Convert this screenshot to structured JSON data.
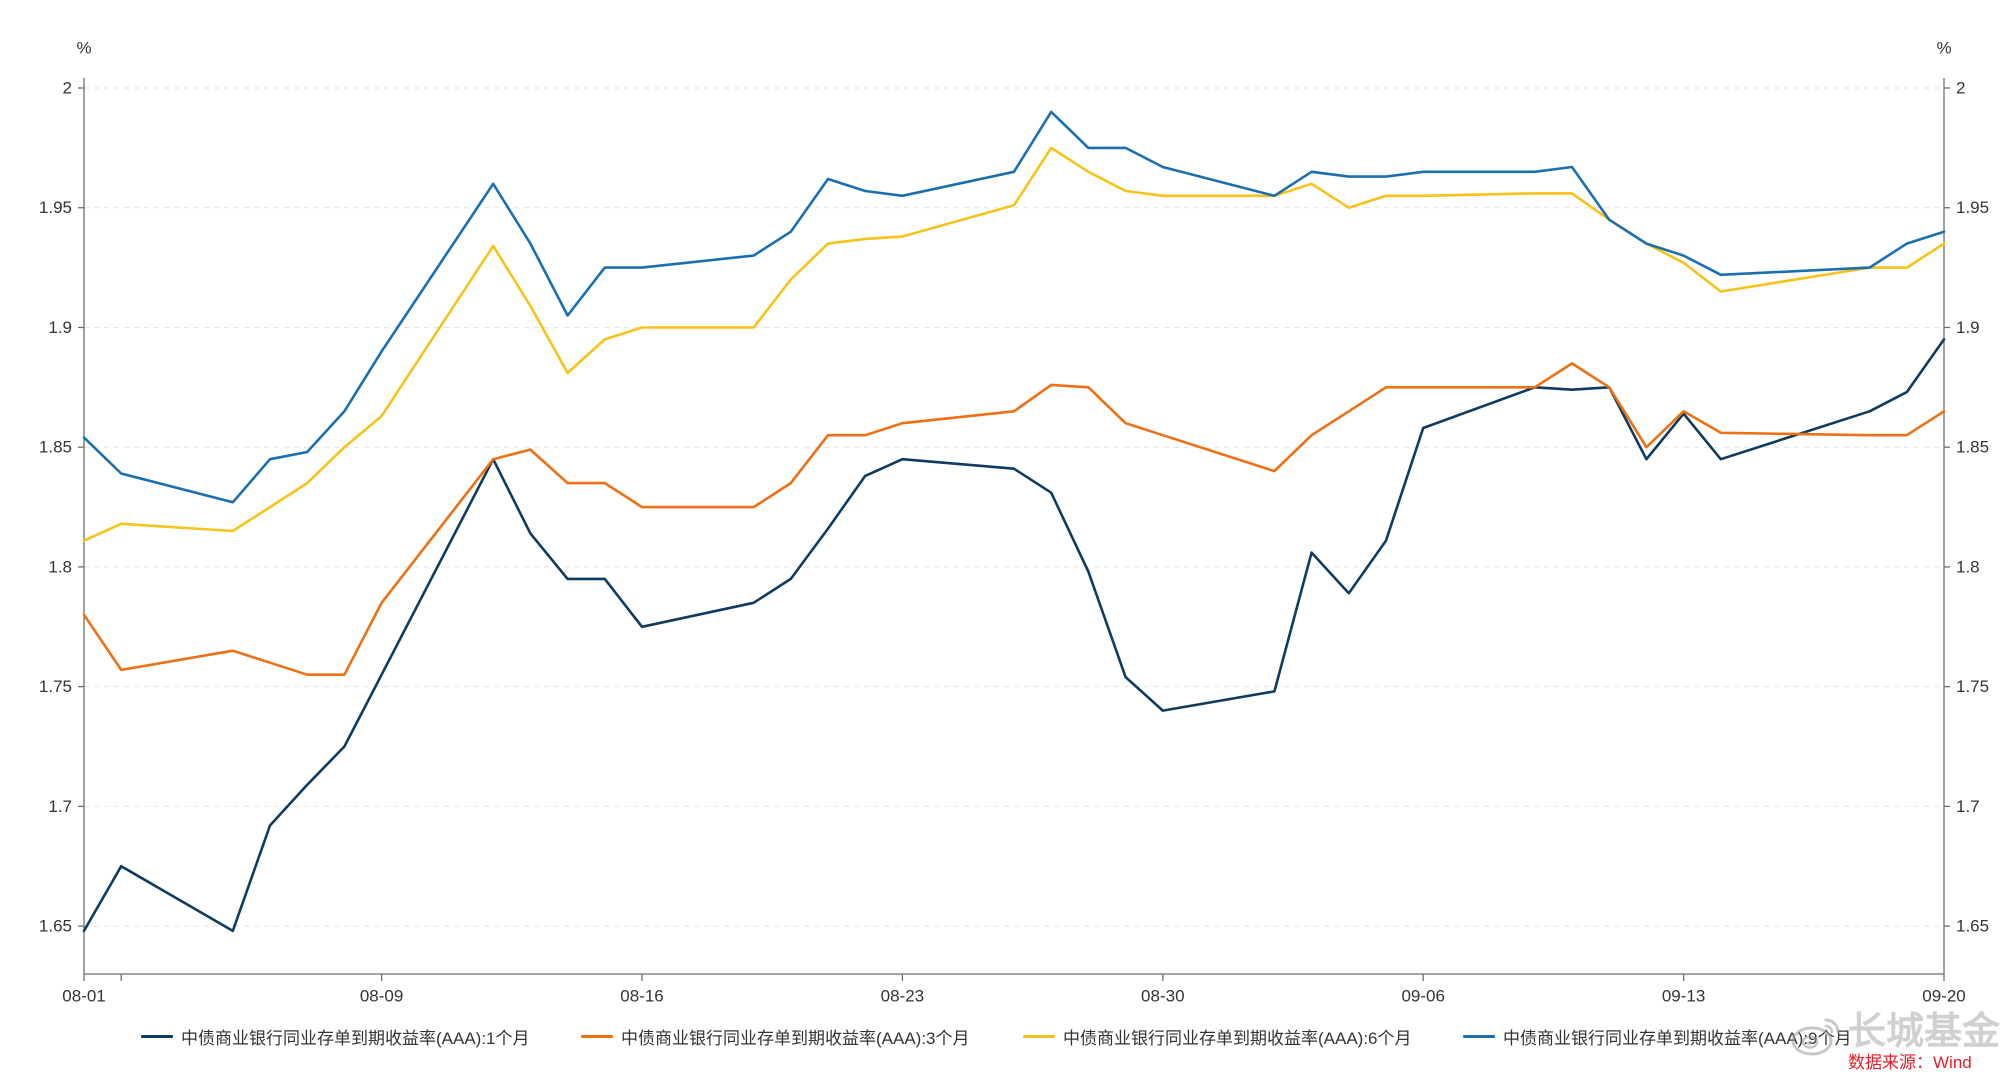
{
  "chart_data": {
    "type": "line",
    "title": "",
    "xlabel": "",
    "ylabel": "",
    "yunit": "%",
    "ylim": [
      1.63,
      2.0
    ],
    "y_ticks": [
      1.65,
      1.7,
      1.75,
      1.8,
      1.85,
      1.9,
      1.95,
      2
    ],
    "right_axis": true,
    "xlim": [
      "08-01",
      "09-20"
    ],
    "x_ticks": [
      "08-01",
      "08-09",
      "08-16",
      "08-23",
      "08-30",
      "09-06",
      "09-13",
      "09-20"
    ],
    "x_minor_ticks": [
      "08-02"
    ],
    "grid": true,
    "legend_position": "bottom",
    "x": [
      "08-01",
      "08-02",
      "08-05",
      "08-06",
      "08-07",
      "08-08",
      "08-09",
      "08-12",
      "08-13",
      "08-14",
      "08-15",
      "08-16",
      "08-19",
      "08-20",
      "08-21",
      "08-22",
      "08-23",
      "08-26",
      "08-27",
      "08-28",
      "08-29",
      "08-30",
      "09-02",
      "09-03",
      "09-04",
      "09-05",
      "09-06",
      "09-09",
      "09-10",
      "09-11",
      "09-12",
      "09-13",
      "09-14",
      "09-18",
      "09-19",
      "09-20"
    ],
    "series": [
      {
        "name": "中债商业银行同业存单到期收益率(AAA):1个月",
        "color": "#0f3b5f",
        "values": [
          1.648,
          1.675,
          1.648,
          1.692,
          1.709,
          1.725,
          1.755,
          1.845,
          1.814,
          1.795,
          1.795,
          1.775,
          1.785,
          1.795,
          1.816,
          1.838,
          1.845,
          1.841,
          1.831,
          1.798,
          1.754,
          1.74,
          1.748,
          1.806,
          1.789,
          1.811,
          1.858,
          1.875,
          1.874,
          1.875,
          1.845,
          1.864,
          1.845,
          1.865,
          1.873,
          1.895
        ]
      },
      {
        "name": "中债商业银行同业存单到期收益率(AAA):3个月",
        "color": "#ec7014",
        "values": [
          1.78,
          1.757,
          1.765,
          1.76,
          1.755,
          1.755,
          1.785,
          1.845,
          1.849,
          1.835,
          1.835,
          1.825,
          1.825,
          1.835,
          1.855,
          1.855,
          1.86,
          1.865,
          1.876,
          1.875,
          1.86,
          1.855,
          1.84,
          1.855,
          1.865,
          1.875,
          1.875,
          1.875,
          1.885,
          1.875,
          1.85,
          1.865,
          1.856,
          1.855,
          1.855,
          1.865
        ]
      },
      {
        "name": "中债商业银行同业存单到期收益率(AAA):6个月",
        "color": "#f7c31a",
        "values": [
          1.811,
          1.818,
          1.815,
          1.825,
          1.835,
          1.85,
          1.863,
          1.934,
          1.909,
          1.881,
          1.895,
          1.9,
          1.9,
          1.92,
          1.935,
          1.937,
          1.938,
          1.951,
          1.975,
          1.965,
          1.957,
          1.955,
          1.955,
          1.96,
          1.95,
          1.955,
          1.955,
          1.956,
          1.956,
          1.945,
          1.935,
          1.927,
          1.915,
          1.925,
          1.925,
          1.935
        ]
      },
      {
        "name": "中债商业银行同业存单到期收益率(AAA):9个月",
        "color": "#1b6faf",
        "values": [
          1.854,
          1.839,
          1.827,
          1.845,
          1.848,
          1.865,
          1.89,
          1.96,
          1.935,
          1.905,
          1.925,
          1.925,
          1.93,
          1.94,
          1.962,
          1.957,
          1.955,
          1.965,
          1.99,
          1.975,
          1.975,
          1.967,
          1.955,
          1.965,
          1.963,
          1.963,
          1.965,
          1.965,
          1.967,
          1.945,
          1.935,
          1.93,
          1.922,
          1.925,
          1.935,
          1.94
        ]
      }
    ]
  },
  "source_note": "数据来源：Wind",
  "watermark": "长城基金",
  "watermark_icon": "weibo-logo-icon"
}
